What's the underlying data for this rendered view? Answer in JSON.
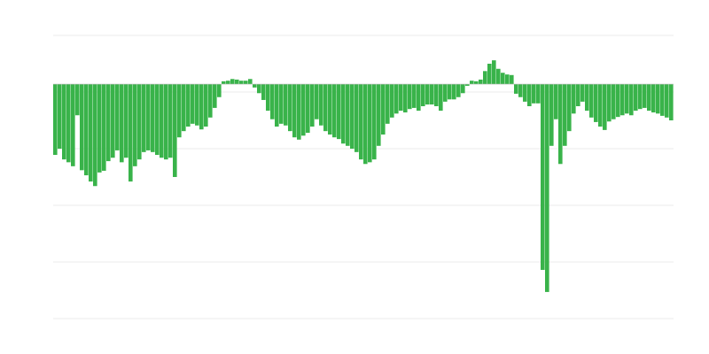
{
  "chart_data": {
    "type": "bar",
    "title": "",
    "xlabel": "",
    "ylabel": "",
    "bar_color": "#39b34a",
    "grid_color": "#ebebeb",
    "grid": true,
    "ylim": [
      -414,
      86
    ],
    "gridlines": [
      86,
      -14,
      -114,
      -214,
      -314,
      -414
    ],
    "values": [
      -125,
      -114,
      -133,
      -138,
      -145,
      -55,
      -152,
      -161,
      -172,
      -180,
      -156,
      -153,
      -136,
      -130,
      -117,
      -138,
      -130,
      -172,
      -145,
      -133,
      -120,
      -117,
      -120,
      -125,
      -130,
      -133,
      -130,
      -164,
      -94,
      -83,
      -75,
      -70,
      -73,
      -80,
      -75,
      -59,
      -42,
      -23,
      5,
      6,
      9,
      8,
      6,
      6,
      9,
      -6,
      -16,
      -28,
      -47,
      -62,
      -75,
      -70,
      -73,
      -83,
      -94,
      -98,
      -91,
      -86,
      -75,
      -62,
      -73,
      -83,
      -89,
      -94,
      -97,
      -105,
      -109,
      -114,
      -120,
      -133,
      -141,
      -138,
      -133,
      -109,
      -89,
      -70,
      -59,
      -52,
      -47,
      -50,
      -44,
      -42,
      -47,
      -39,
      -36,
      -36,
      -39,
      -47,
      -31,
      -27,
      -27,
      -23,
      -16,
      -3,
      6,
      5,
      8,
      23,
      36,
      42,
      27,
      20,
      17,
      16,
      -17,
      -23,
      -31,
      -39,
      -34,
      -34,
      -328,
      -367,
      -109,
      -62,
      -141,
      -109,
      -83,
      -52,
      -39,
      -31,
      -47,
      -59,
      -67,
      -75,
      -81,
      -66,
      -62,
      -58,
      -55,
      -52,
      -55,
      -47,
      -44,
      -42,
      -47,
      -50,
      -52,
      -56,
      -59,
      -64
    ]
  }
}
